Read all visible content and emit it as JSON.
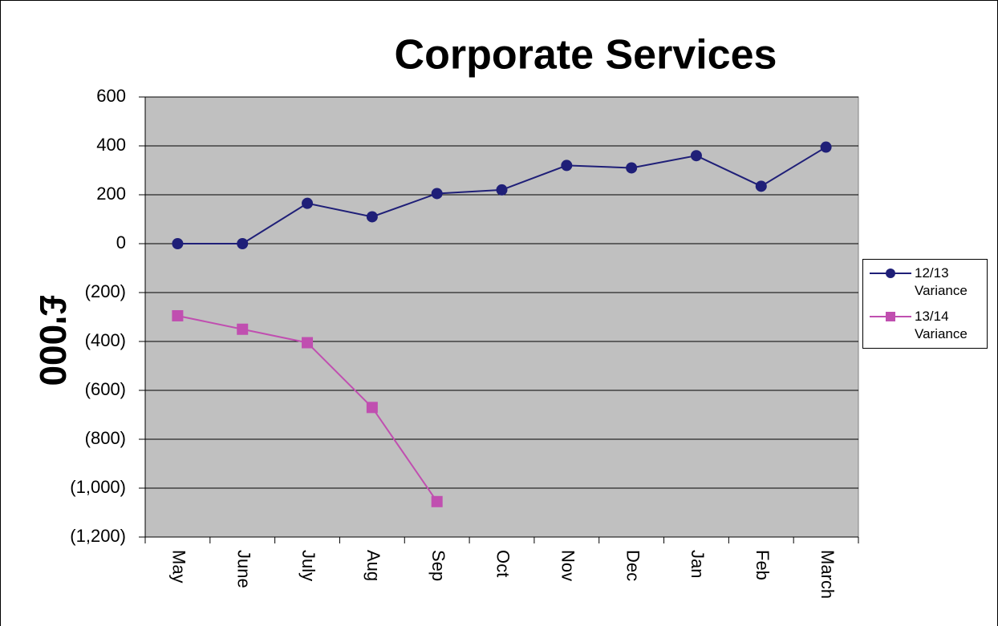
{
  "chart_data": {
    "type": "line",
    "title": "Corporate Services",
    "y_label": "£'000",
    "categories": [
      "May",
      "June",
      "July",
      "Aug",
      "Sep",
      "Oct",
      "Nov",
      "Dec",
      "Jan",
      "Feb",
      "March"
    ],
    "series": [
      {
        "name": "12/13 Variance",
        "color": "#1f1f78",
        "marker": "circle",
        "values": [
          0,
          0,
          165,
          110,
          205,
          220,
          320,
          310,
          360,
          235,
          395
        ]
      },
      {
        "name": "13/14 Variance",
        "color": "#c04fb0",
        "marker": "square",
        "values": [
          -295,
          -350,
          -405,
          -670,
          -1055,
          null,
          null,
          null,
          null,
          null,
          null
        ]
      }
    ],
    "ylim": [
      -1200,
      600
    ],
    "yticks": [
      {
        "value": -1200,
        "label": "(1,200)"
      },
      {
        "value": -1000,
        "label": "(1,000)"
      },
      {
        "value": -800,
        "label": "(800)"
      },
      {
        "value": -600,
        "label": "(600)"
      },
      {
        "value": -400,
        "label": "(400)"
      },
      {
        "value": -200,
        "label": "(200)"
      },
      0,
      200,
      400,
      600
    ],
    "grid": true,
    "legend": "right"
  }
}
